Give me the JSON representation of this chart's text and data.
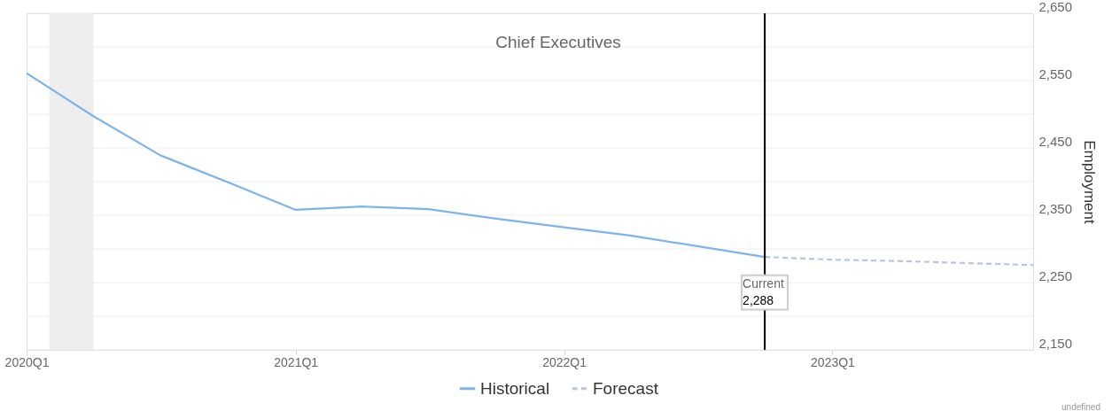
{
  "chart_data": {
    "type": "line",
    "title": "Chief Executives",
    "ylabel": "Employment",
    "xlim": [
      "2020-01",
      "2023-10"
    ],
    "ylim": [
      2150,
      2650
    ],
    "xticks": [
      {
        "value": "2020-01",
        "label": "2020Q1"
      },
      {
        "value": "2021-01",
        "label": "2021Q1"
      },
      {
        "value": "2022-01",
        "label": "2022Q1"
      },
      {
        "value": "2023-01",
        "label": "2023Q1"
      }
    ],
    "yticks": [
      {
        "value": 2150,
        "label": "2,150"
      },
      {
        "value": 2200,
        "label": null
      },
      {
        "value": 2250,
        "label": "2,250"
      },
      {
        "value": 2300,
        "label": null
      },
      {
        "value": 2350,
        "label": "2,350"
      },
      {
        "value": 2400,
        "label": null
      },
      {
        "value": 2450,
        "label": "2,450"
      },
      {
        "value": 2500,
        "label": null
      },
      {
        "value": 2550,
        "label": "2,550"
      },
      {
        "value": 2600,
        "label": null
      },
      {
        "value": 2650,
        "label": "2,650"
      }
    ],
    "series": [
      {
        "name": "Historical",
        "color": "#7cb5ec",
        "line_style": "solid",
        "x": [
          "2020-01",
          "2020-04",
          "2020-07",
          "2020-10",
          "2021-01",
          "2021-04",
          "2021-07",
          "2021-10",
          "2022-01",
          "2022-04",
          "2022-07",
          "2022-10"
        ],
        "values": [
          2561,
          2497,
          2439,
          2399,
          2358,
          2363,
          2359,
          2345,
          2332,
          2320,
          2304,
          2288
        ],
        "value_labels": [
          null,
          null,
          null,
          null,
          null,
          null,
          null,
          null,
          null,
          null,
          null,
          "2,288"
        ]
      },
      {
        "name": "Forecast",
        "color": "#b3c6e4",
        "line_style": "dashed",
        "x": [
          "2022-10",
          "2023-01",
          "2023-04",
          "2023-07",
          "2023-10"
        ],
        "values": [
          2288,
          2284,
          2282,
          2279,
          2276
        ]
      }
    ],
    "ref_lines": [
      {
        "axis": "x",
        "value": "2022-10",
        "label": null,
        "color": "#000000"
      }
    ],
    "bands": [
      {
        "axis": "x",
        "from": "2020-02",
        "to": "2020-04",
        "label": null,
        "color": "#eeeeee"
      }
    ],
    "annotations": [
      {
        "text": "Current",
        "x": "2022-10",
        "y": 2288
      },
      "undefined"
    ],
    "grid": "y",
    "legend": "bottom",
    "marker": "none"
  }
}
